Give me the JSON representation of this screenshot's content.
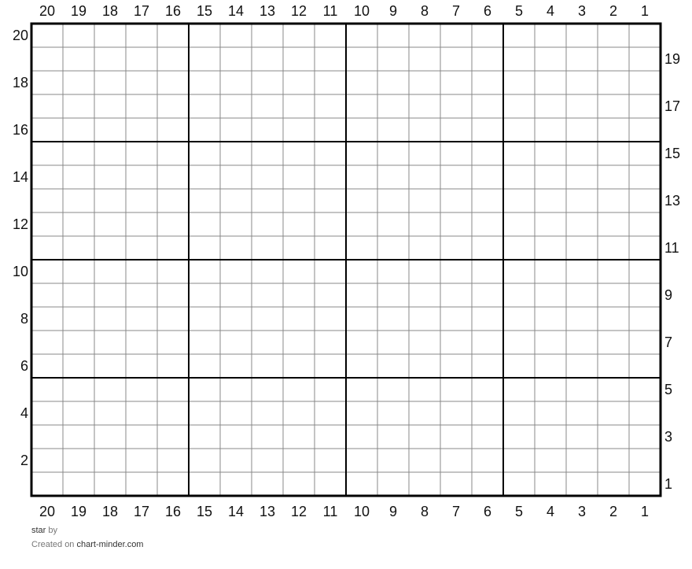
{
  "grid": {
    "columns": 20,
    "rows": 20,
    "major_every": 5,
    "column_labels": [
      "20",
      "19",
      "18",
      "17",
      "16",
      "15",
      "14",
      "13",
      "12",
      "11",
      "10",
      "9",
      "8",
      "7",
      "6",
      "5",
      "4",
      "3",
      "2",
      "1"
    ],
    "left_row_labels": [
      "20",
      "18",
      "16",
      "14",
      "12",
      "10",
      "8",
      "6",
      "4",
      "2"
    ],
    "right_row_labels": [
      "19",
      "17",
      "15",
      "13",
      "11",
      "9",
      "7",
      "5",
      "3",
      "1"
    ],
    "colors": {
      "major_line": "#000000",
      "minor_line": "#888888",
      "cell": "#ffffff"
    }
  },
  "footer": {
    "title": "star",
    "by": "by",
    "created_on": "Created on",
    "site": "chart-minder.com"
  }
}
